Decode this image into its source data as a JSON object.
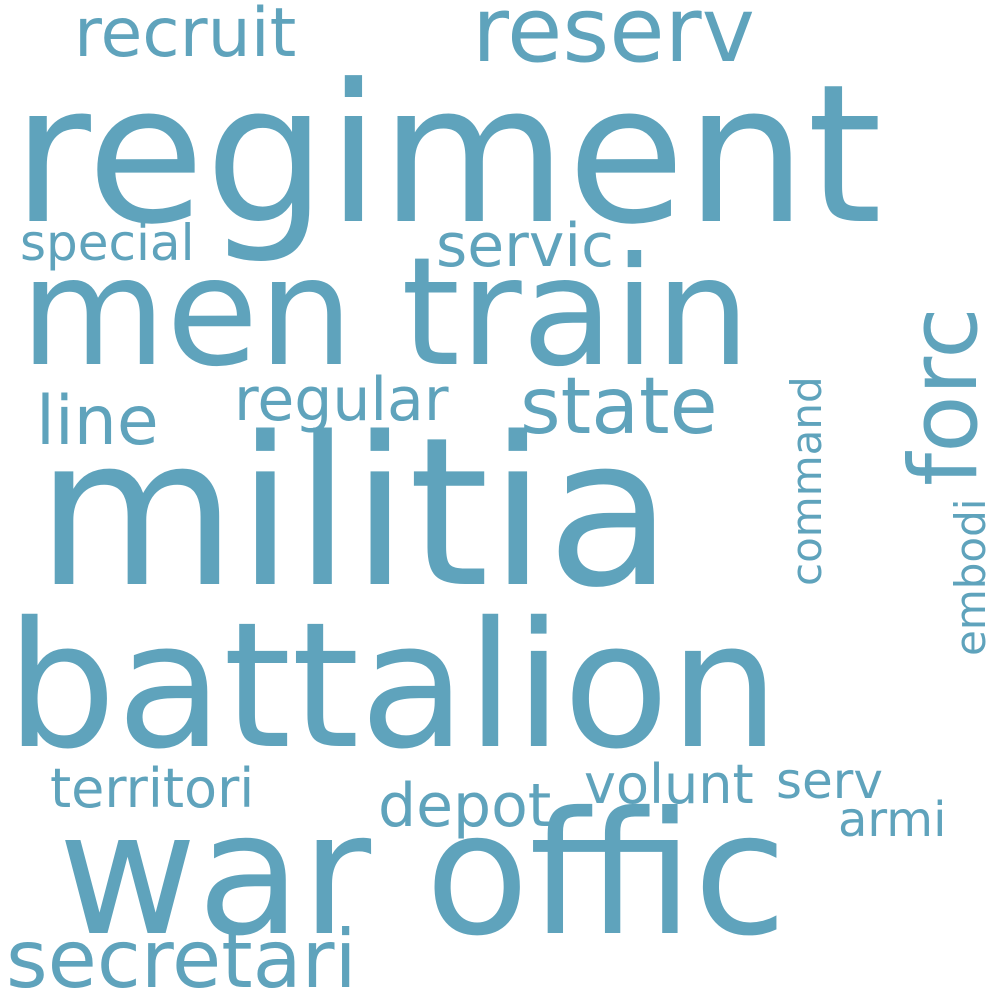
{
  "cloud": {
    "color": "#5fa3bc",
    "background": "#ffffff",
    "words": {
      "regiment": "regiment",
      "militia": "militia",
      "battalion": "battalion",
      "men_train": "men train",
      "war_offic": "war offic",
      "reserv": "reserv",
      "forc": "forc",
      "recruit": "recruit",
      "state": "state",
      "servic": "servic",
      "special": "special",
      "line": "line",
      "regular": "regular",
      "command": "command",
      "embodi": "embodi",
      "territori": "territori",
      "depot": "depot",
      "volunt": "volunt",
      "serv": "serv",
      "armi": "armi",
      "secretari": "secretari"
    }
  }
}
